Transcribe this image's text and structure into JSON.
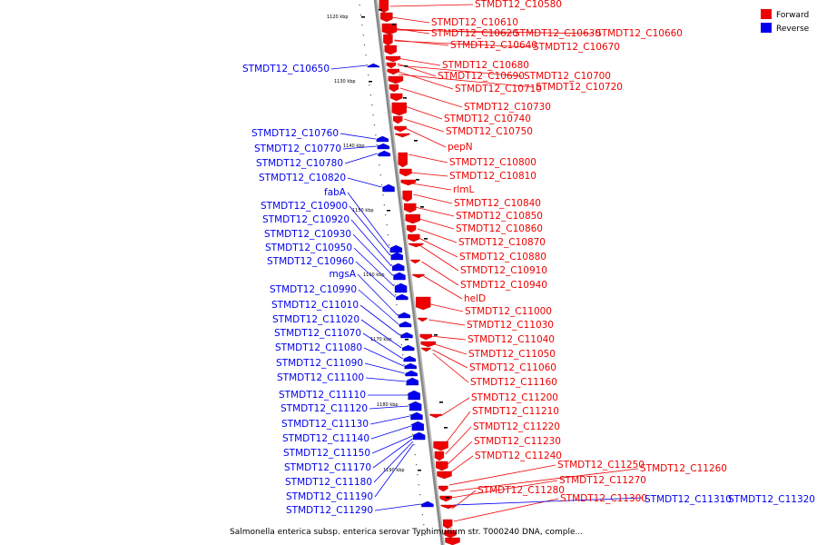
{
  "title": "Salmonella enterica subsp. enterica serovar Typhimurium str. T000240 DNA, comple...",
  "legend": [
    {
      "label": "Forward",
      "color": "#ee0000"
    },
    {
      "label": "Reverse",
      "color": "#0000ee"
    }
  ],
  "colors": {
    "forward": "#ee0000",
    "reverse": "#0000ee",
    "backbone": "#888888"
  },
  "ticks": [
    "1120 kbp",
    "1130 kbp",
    "1140 kbp",
    "1150 kbp",
    "1160 kbp",
    "1170 kbp",
    "1180 kbp",
    "1190 kbp"
  ],
  "forward_genes": [
    "STMDT12_C10580",
    "STMDT12_C10610",
    "STMDT12_C10620",
    "STMDT12_C10630",
    "STMDT12_C10660",
    "STMDT12_C10640",
    "STMDT12_C10670",
    "STMDT12_C10680",
    "STMDT12_C10690",
    "STMDT12_C10700",
    "STMDT12_C10710",
    "STMDT12_C10720",
    "STMDT12_C10730",
    "STMDT12_C10740",
    "STMDT12_C10750",
    "pepN",
    "STMDT12_C10800",
    "STMDT12_C10810",
    "rlmL",
    "STMDT12_C10840",
    "STMDT12_C10850",
    "STMDT12_C10860",
    "STMDT12_C10870",
    "STMDT12_C10880",
    "STMDT12_C10910",
    "STMDT12_C10940",
    "helD",
    "STMDT12_C11000",
    "STMDT12_C11030",
    "STMDT12_C11040",
    "STMDT12_C11050",
    "STMDT12_C11060",
    "STMDT12_C11160",
    "STMDT12_C11200",
    "STMDT12_C11210",
    "STMDT12_C11220",
    "STMDT12_C11230",
    "STMDT12_C11240",
    "STMDT12_C11250",
    "STMDT12_C11260",
    "STMDT12_C11270",
    "STMDT12_C11280",
    "STMDT12_C11300"
  ],
  "reverse_genes": [
    "STMDT12_C10650",
    "STMDT12_C10760",
    "STMDT12_C10770",
    "STMDT12_C10780",
    "STMDT12_C10820",
    "fabA",
    "STMDT12_C10900",
    "STMDT12_C10920",
    "STMDT12_C10930",
    "STMDT12_C10950",
    "STMDT12_C10960",
    "mgsA",
    "STMDT12_C10990",
    "STMDT12_C11010",
    "STMDT12_C11020",
    "STMDT12_C11070",
    "STMDT12_C11080",
    "STMDT12_C11090",
    "STMDT12_C11100",
    "STMDT12_C11110",
    "STMDT12_C11120",
    "STMDT12_C11130",
    "STMDT12_C11140",
    "STMDT12_C11150",
    "STMDT12_C11170",
    "STMDT12_C11180",
    "STMDT12_C11190",
    "STMDT12_C11290",
    "STMDT12_C11310",
    "STMDT12_C11320"
  ]
}
